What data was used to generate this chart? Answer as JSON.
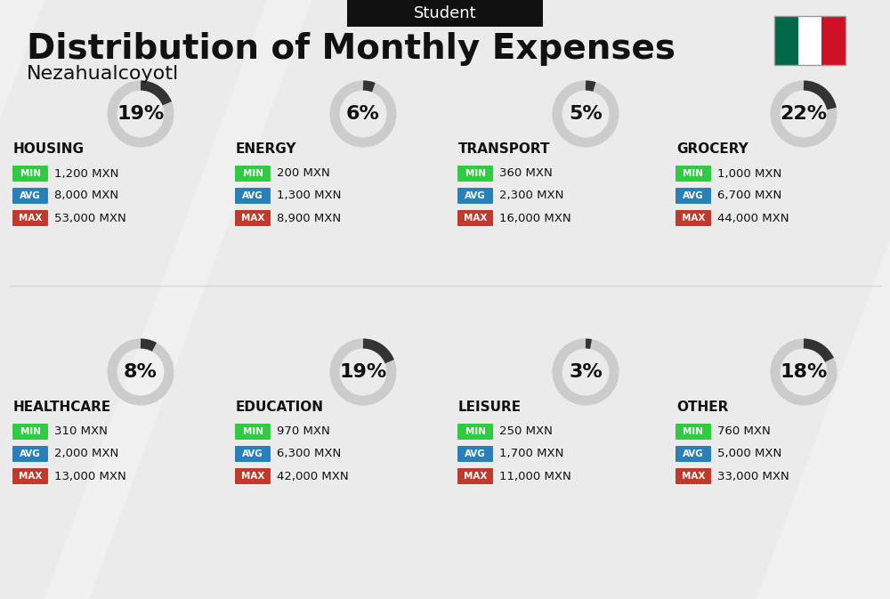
{
  "title": "Distribution of Monthly Expenses",
  "subtitle": "Nezahualcoyotl",
  "header_label": "Student",
  "bg_color": "#f0f0f0",
  "categories": [
    {
      "name": "HOUSING",
      "percent": 19,
      "min": "1,200 MXN",
      "avg": "8,000 MXN",
      "max": "53,000 MXN",
      "col": 0,
      "row": 0
    },
    {
      "name": "ENERGY",
      "percent": 6,
      "min": "200 MXN",
      "avg": "1,300 MXN",
      "max": "8,900 MXN",
      "col": 1,
      "row": 0
    },
    {
      "name": "TRANSPORT",
      "percent": 5,
      "min": "360 MXN",
      "avg": "2,300 MXN",
      "max": "16,000 MXN",
      "col": 2,
      "row": 0
    },
    {
      "name": "GROCERY",
      "percent": 22,
      "min": "1,000 MXN",
      "avg": "6,700 MXN",
      "max": "44,000 MXN",
      "col": 3,
      "row": 0
    },
    {
      "name": "HEALTHCARE",
      "percent": 8,
      "min": "310 MXN",
      "avg": "2,000 MXN",
      "max": "13,000 MXN",
      "col": 0,
      "row": 1
    },
    {
      "name": "EDUCATION",
      "percent": 19,
      "min": "970 MXN",
      "avg": "6,300 MXN",
      "max": "42,000 MXN",
      "col": 1,
      "row": 1
    },
    {
      "name": "LEISURE",
      "percent": 3,
      "min": "250 MXN",
      "avg": "1,700 MXN",
      "max": "11,000 MXN",
      "col": 2,
      "row": 1
    },
    {
      "name": "OTHER",
      "percent": 18,
      "min": "760 MXN",
      "avg": "5,000 MXN",
      "max": "33,000 MXN",
      "col": 3,
      "row": 1
    }
  ],
  "min_color": "#2ecc40",
  "avg_color": "#2980b9",
  "max_color": "#c0392b",
  "label_color": "#ffffff",
  "text_color": "#111111",
  "arc_color": "#333333",
  "arc_bg_color": "#cccccc",
  "title_fontsize": 28,
  "subtitle_fontsize": 16,
  "header_fontsize": 13,
  "category_fontsize": 11,
  "value_fontsize": 10,
  "percent_fontsize": 18
}
